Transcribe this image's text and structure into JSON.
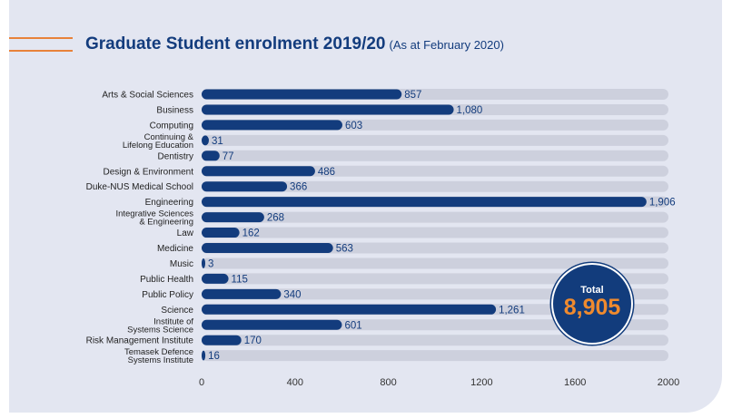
{
  "chart_data": {
    "type": "bar",
    "orientation": "horizontal",
    "title": "Graduate Student enrolment 2019/20",
    "subtitle": "(As at February 2020)",
    "categories": [
      "Arts & Social Sciences",
      "Business",
      "Computing",
      "Continuing &\nLifelong Education",
      "Dentistry",
      "Design & Environment",
      "Duke-NUS Medical School",
      "Engineering",
      "Integrative Sciences\n& Engineering",
      "Law",
      "Medicine",
      "Music",
      "Public Health",
      "Public Policy",
      "Science",
      "Institute of\nSystems Science",
      "Risk Management Institute",
      "Temasek Defence\nSystems Institute"
    ],
    "values": [
      857,
      1080,
      603,
      31,
      77,
      486,
      366,
      1906,
      268,
      162,
      563,
      3,
      115,
      340,
      1261,
      601,
      170,
      16
    ],
    "value_labels": [
      "857",
      "1,080",
      "603",
      "31",
      "77",
      "486",
      "366",
      "1,906",
      "268",
      "162",
      "563",
      "3",
      "115",
      "340",
      "1,261",
      "601",
      "170",
      "16"
    ],
    "xlim": [
      0,
      2000
    ],
    "xticks": [
      "0",
      "400",
      "800",
      "1200",
      "1600",
      "2000"
    ],
    "xlabel": "",
    "ylabel": "",
    "grid": false,
    "colors": {
      "bar": "#133c7d",
      "track": "#cdd0dd",
      "accent": "#e8823a"
    }
  },
  "total": {
    "label": "Total",
    "value": "8,905"
  }
}
